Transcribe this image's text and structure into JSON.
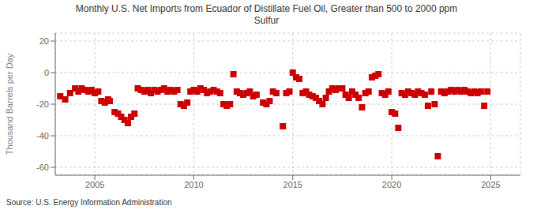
{
  "chart_data": {
    "type": "scatter",
    "title": "Monthly U.S. Net Imports from Ecuador of Distillate Fuel Oil, Greater than 500 to 2000 ppm\nSulfur",
    "ylabel": "Thousand Barrels per Day",
    "source": "Source: U.S. Energy Information Administration",
    "color": "#cc0000",
    "marker": "square",
    "grid": true,
    "xlim": [
      2003.0,
      2026.5
    ],
    "xticks": [
      2005,
      2010,
      2015,
      2020,
      2025
    ],
    "ylim": [
      -65,
      25
    ],
    "yticks": [
      -60,
      -40,
      -20,
      0,
      20
    ],
    "x": [
      2003.25,
      2003.5,
      2003.75,
      2004.0,
      2004.17,
      2004.33,
      2004.5,
      2004.67,
      2004.83,
      2005.0,
      2005.17,
      2005.33,
      2005.5,
      2005.67,
      2005.75,
      2006.0,
      2006.17,
      2006.33,
      2006.5,
      2006.67,
      2006.83,
      2007.0,
      2007.17,
      2007.33,
      2007.5,
      2007.67,
      2007.83,
      2008.0,
      2008.17,
      2008.33,
      2008.5,
      2008.67,
      2008.83,
      2009.0,
      2009.17,
      2009.33,
      2009.5,
      2009.67,
      2009.83,
      2010.0,
      2010.17,
      2010.33,
      2010.5,
      2010.67,
      2010.83,
      2011.0,
      2011.17,
      2011.33,
      2011.5,
      2011.67,
      2011.83,
      2012.0,
      2012.17,
      2012.33,
      2012.5,
      2012.67,
      2012.83,
      2013.0,
      2013.17,
      2013.5,
      2013.67,
      2013.83,
      2014.0,
      2014.17,
      2014.5,
      2014.67,
      2014.83,
      2015.0,
      2015.17,
      2015.33,
      2015.5,
      2015.67,
      2015.83,
      2016.0,
      2016.17,
      2016.33,
      2016.5,
      2016.67,
      2016.83,
      2017.0,
      2017.17,
      2017.33,
      2017.5,
      2017.67,
      2017.83,
      2018.0,
      2018.17,
      2018.33,
      2018.5,
      2018.67,
      2018.83,
      2019.0,
      2019.17,
      2019.33,
      2019.5,
      2019.67,
      2019.83,
      2020.0,
      2020.17,
      2020.33,
      2020.5,
      2020.67,
      2020.83,
      2021.0,
      2021.17,
      2021.33,
      2021.5,
      2021.67,
      2021.83,
      2022.0,
      2022.17,
      2022.33,
      2022.5,
      2022.67,
      2022.83,
      2023.0,
      2023.17,
      2023.33,
      2023.5,
      2023.67,
      2023.83,
      2024.0,
      2024.17,
      2024.33,
      2024.5,
      2024.67,
      2024.83
    ],
    "values": [
      -15,
      -17,
      -13,
      -10,
      -12,
      -10,
      -11,
      -12,
      -11,
      -13,
      -12,
      -18,
      -19,
      -17,
      -18,
      -25,
      -26,
      -28,
      -30,
      -32,
      -28,
      -26,
      -10,
      -11,
      -12,
      -11,
      -13,
      -11,
      -12,
      -11,
      -10,
      -12,
      -11,
      -12,
      -11,
      -20,
      -21,
      -19,
      -12,
      -11,
      -12,
      -10,
      -11,
      -13,
      -12,
      -11,
      -12,
      -13,
      -20,
      -21,
      -20,
      -1,
      -12,
      -13,
      -14,
      -13,
      -12,
      -15,
      -14,
      -19,
      -20,
      -18,
      -12,
      -13,
      -34,
      -13,
      -12,
      0,
      -3,
      -4,
      -13,
      -12,
      -14,
      -15,
      -16,
      -18,
      -20,
      -16,
      -12,
      -10,
      -11,
      -10,
      -10,
      -14,
      -16,
      -12,
      -14,
      -16,
      -22,
      -13,
      -12,
      -3,
      -2,
      -1,
      -13,
      -14,
      -12,
      -25,
      -26,
      -35,
      -13,
      -14,
      -12,
      -13,
      -14,
      -12,
      -13,
      -14,
      -21,
      -12,
      -20,
      -53,
      -12,
      -13,
      -12,
      -11,
      -12,
      -11,
      -12,
      -11,
      -12,
      -13,
      -12,
      -13,
      -12,
      -21,
      -12
    ]
  }
}
